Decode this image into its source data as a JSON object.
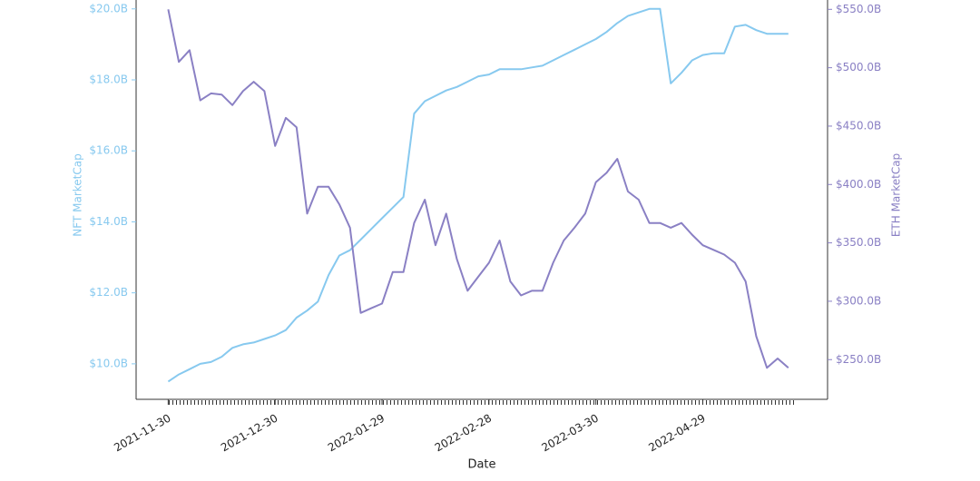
{
  "chart_data": {
    "type": "line",
    "x_label": "Date",
    "y_label": "NFT MarketCap",
    "y2_label": "ETH MarketCap",
    "x": [
      "2021-11-30",
      "2021-12-03",
      "2021-12-06",
      "2021-12-09",
      "2021-12-12",
      "2021-12-15",
      "2021-12-18",
      "2021-12-21",
      "2021-12-24",
      "2021-12-27",
      "2021-12-30",
      "2022-01-02",
      "2022-01-05",
      "2022-01-08",
      "2022-01-11",
      "2022-01-14",
      "2022-01-17",
      "2022-01-20",
      "2022-01-23",
      "2022-01-26",
      "2022-01-29",
      "2022-02-01",
      "2022-02-04",
      "2022-02-07",
      "2022-02-10",
      "2022-02-13",
      "2022-02-16",
      "2022-02-19",
      "2022-02-22",
      "2022-02-25",
      "2022-02-28",
      "2022-03-03",
      "2022-03-06",
      "2022-03-09",
      "2022-03-12",
      "2022-03-15",
      "2022-03-18",
      "2022-03-21",
      "2022-03-24",
      "2022-03-27",
      "2022-03-30",
      "2022-04-02",
      "2022-04-05",
      "2022-04-08",
      "2022-04-11",
      "2022-04-14",
      "2022-04-17",
      "2022-04-20",
      "2022-04-23",
      "2022-04-26",
      "2022-04-29",
      "2022-05-02",
      "2022-05-05",
      "2022-05-08",
      "2022-05-11",
      "2022-05-14",
      "2022-05-17",
      "2022-05-20",
      "2022-05-23"
    ],
    "series": [
      {
        "name": "NFT MarketCap",
        "color": "#87c9ef",
        "values": [
          9.5,
          9.7,
          9.85,
          10.0,
          10.05,
          10.2,
          10.45,
          10.55,
          10.6,
          10.7,
          10.8,
          10.95,
          11.3,
          11.5,
          11.75,
          12.5,
          13.05,
          13.2,
          13.5,
          13.8,
          14.1,
          14.4,
          14.7,
          17.05,
          17.4,
          17.55,
          17.7,
          17.8,
          17.95,
          18.1,
          18.15,
          18.3,
          18.3,
          18.3,
          18.35,
          18.4,
          18.55,
          18.7,
          18.85,
          19.0,
          19.15,
          19.35,
          19.6,
          19.8,
          19.9,
          20.0,
          20.0,
          17.9,
          18.2,
          18.55,
          18.7,
          18.75,
          18.75,
          19.5,
          19.55,
          19.4,
          19.3,
          19.3,
          19.3
        ]
      },
      {
        "name": "ETH MarketCap",
        "color": "#8a80c4",
        "axis": "y2",
        "values": [
          550,
          505,
          515,
          472,
          478,
          477,
          468,
          480,
          488,
          480,
          433,
          457,
          449,
          375,
          398,
          398,
          383,
          363,
          290,
          294,
          298,
          325,
          325,
          367,
          387,
          348,
          375,
          336,
          309,
          321,
          333,
          352,
          317,
          305,
          309,
          309,
          333,
          352,
          363,
          375,
          402,
          410,
          422,
          394,
          387,
          367,
          367,
          363,
          367,
          357,
          348,
          344,
          340,
          333,
          317,
          270,
          243,
          251,
          243
        ]
      }
    ],
    "xlim": [
      "2021-11-21",
      "2022-06-03"
    ],
    "xticks": [
      "2021-11-30",
      "2021-12-30",
      "2022-01-29",
      "2022-02-28",
      "2022-03-30",
      "2022-04-29"
    ],
    "ylim": [
      9.0,
      20.25
    ],
    "yticks": [
      {
        "value": 10,
        "label": "$10.0B"
      },
      {
        "value": 12,
        "label": "$12.0B"
      },
      {
        "value": 14,
        "label": "$14.0B"
      },
      {
        "value": 16,
        "label": "$16.0B"
      },
      {
        "value": 18,
        "label": "$18.0B"
      },
      {
        "value": 20,
        "label": "$20.0B"
      }
    ],
    "y2lim": [
      216,
      558
    ],
    "y2ticks": [
      {
        "value": 250,
        "label": "$250.0B"
      },
      {
        "value": 300,
        "label": "$300.0B"
      },
      {
        "value": 350,
        "label": "$350.0B"
      },
      {
        "value": 400,
        "label": "$400.0B"
      },
      {
        "value": 450,
        "label": "$450.0B"
      },
      {
        "value": 500,
        "label": "$500.0B"
      },
      {
        "value": 550,
        "label": "$550.0B"
      }
    ]
  }
}
